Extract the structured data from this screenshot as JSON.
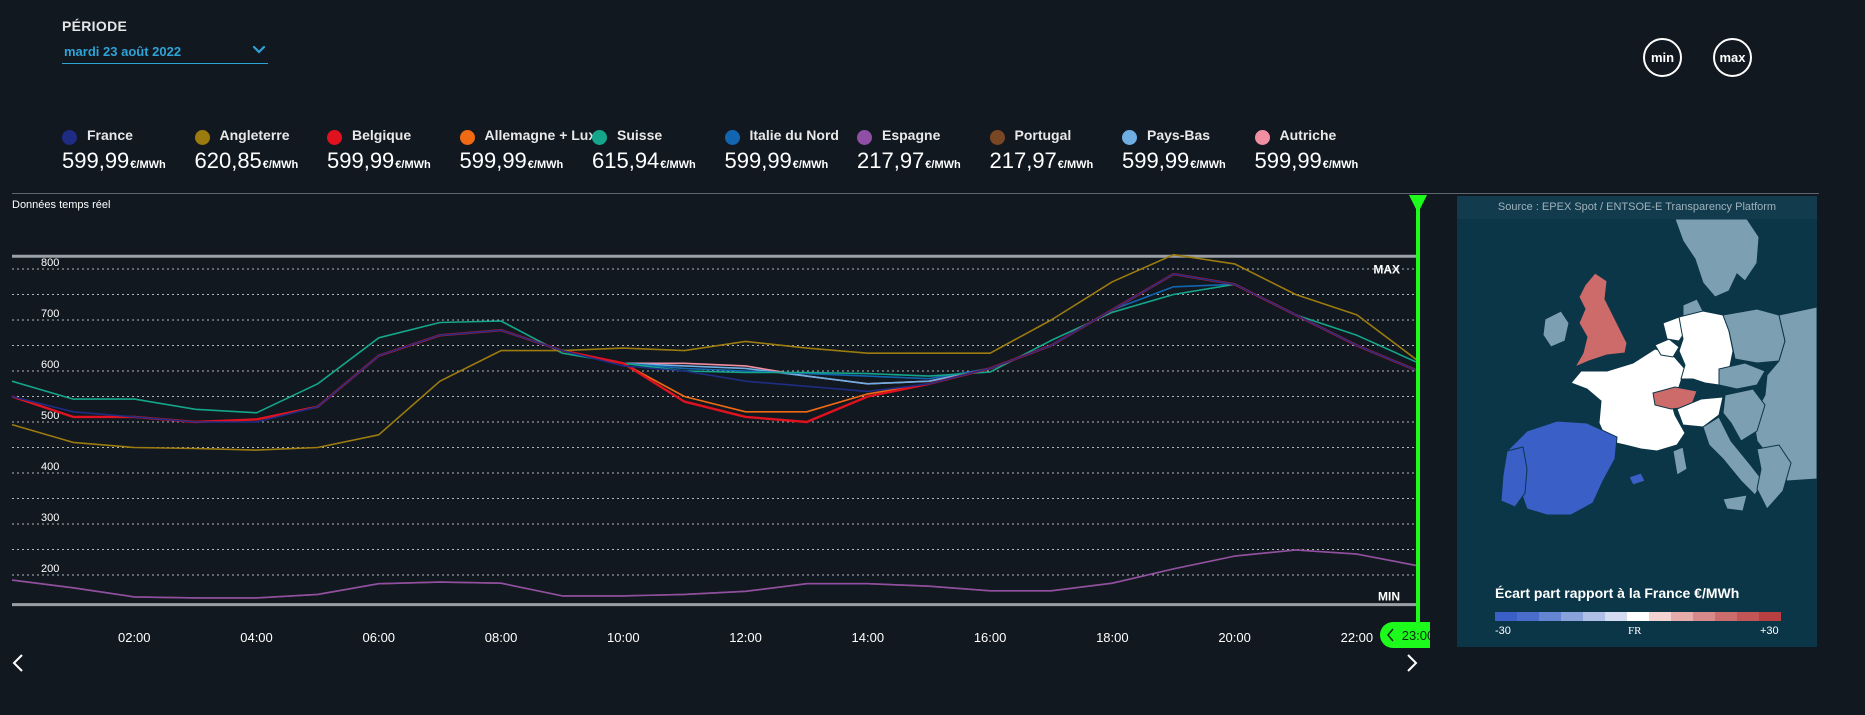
{
  "period": {
    "label": "PÉRIODE",
    "date": "mardi 23 août 2022"
  },
  "buttons": {
    "min": "min",
    "max": "max"
  },
  "legend": [
    {
      "name": "France",
      "value": "599,99",
      "unit": "€/MWh",
      "color": "#1f2c84"
    },
    {
      "name": "Angleterre",
      "value": "620,85",
      "unit": "€/MWh",
      "color": "#9c7b0e"
    },
    {
      "name": "Belgique",
      "value": "599,99",
      "unit": "€/MWh",
      "color": "#e0121f"
    },
    {
      "name": "Allemagne + Lux",
      "value": "599,99",
      "unit": "€/MWh",
      "color": "#ef6a13"
    },
    {
      "name": "Suisse",
      "value": "615,94",
      "unit": "€/MWh",
      "color": "#14a58a"
    },
    {
      "name": "Italie du Nord",
      "value": "599,99",
      "unit": "€/MWh",
      "color": "#1265b0"
    },
    {
      "name": "Espagne",
      "value": "217,97",
      "unit": "€/MWh",
      "color": "#8e4fa5"
    },
    {
      "name": "Portugal",
      "value": "217,97",
      "unit": "€/MWh",
      "color": "#7a4724"
    },
    {
      "name": "Pays-Bas",
      "value": "599,99",
      "unit": "€/MWh",
      "color": "#6faee3"
    },
    {
      "name": "Autriche",
      "value": "599,99",
      "unit": "€/MWh",
      "color": "#f08fa2"
    }
  ],
  "chart_label": "Données temps réel",
  "chart_data": {
    "type": "line",
    "x": [
      "00:00",
      "01:00",
      "02:00",
      "03:00",
      "04:00",
      "05:00",
      "06:00",
      "07:00",
      "08:00",
      "09:00",
      "10:00",
      "11:00",
      "12:00",
      "13:00",
      "14:00",
      "15:00",
      "16:00",
      "17:00",
      "18:00",
      "19:00",
      "20:00",
      "21:00",
      "22:00",
      "23:00"
    ],
    "x_tick_labels": [
      "02:00",
      "04:00",
      "06:00",
      "08:00",
      "10:00",
      "12:00",
      "14:00",
      "16:00",
      "18:00",
      "20:00",
      "22:00"
    ],
    "y_tick_labels": [
      "200",
      "300",
      "400",
      "500",
      "600",
      "700",
      "800"
    ],
    "ylim": [
      150,
      840
    ],
    "max_line": {
      "label": "MAX",
      "value": 825
    },
    "min_line": {
      "label": "MIN",
      "value": 142
    },
    "cursor": {
      "label": "23:00",
      "color": "#1dfb1d"
    },
    "series": [
      {
        "name": "France",
        "color": "#1f2c84",
        "values": [
          550,
          520,
          510,
          500,
          500,
          530,
          630,
          670,
          680,
          640,
          610,
          600,
          580,
          570,
          560,
          575,
          605,
          650,
          720,
          790,
          770,
          710,
          650,
          600
        ]
      },
      {
        "name": "Angleterre",
        "color": "#9c7b0e",
        "values": [
          495,
          460,
          450,
          448,
          445,
          450,
          475,
          580,
          640,
          640,
          645,
          640,
          658,
          645,
          635,
          635,
          635,
          700,
          775,
          828,
          810,
          750,
          710,
          620
        ]
      },
      {
        "name": "Belgique",
        "color": "#e0121f",
        "values": [
          550,
          510,
          510,
          500,
          505,
          530,
          630,
          670,
          680,
          640,
          615,
          540,
          510,
          500,
          550,
          575,
          605,
          650,
          720,
          790,
          770,
          710,
          650,
          600
        ]
      },
      {
        "name": "Allemagne + Lux",
        "color": "#ef6a13",
        "values": [
          550,
          510,
          510,
          500,
          505,
          530,
          630,
          670,
          680,
          640,
          615,
          550,
          520,
          520,
          555,
          575,
          605,
          650,
          720,
          790,
          770,
          710,
          650,
          600
        ]
      },
      {
        "name": "Suisse",
        "color": "#14a58a",
        "values": [
          580,
          545,
          545,
          525,
          518,
          575,
          665,
          695,
          698,
          635,
          615,
          600,
          597,
          597,
          595,
          590,
          598,
          660,
          715,
          750,
          770,
          710,
          670,
          616
        ]
      },
      {
        "name": "Italie du Nord",
        "color": "#1265b0",
        "values": [
          550,
          510,
          510,
          500,
          505,
          530,
          630,
          670,
          680,
          640,
          615,
          605,
          600,
          595,
          590,
          585,
          605,
          650,
          720,
          765,
          770,
          710,
          650,
          600
        ]
      },
      {
        "name": "Espagne",
        "color": "#8e4fa5",
        "values": [
          190,
          175,
          157,
          155,
          155,
          162,
          183,
          186,
          184,
          159,
          159,
          162,
          168,
          183,
          183,
          178,
          169,
          169,
          184,
          212,
          237,
          249,
          241,
          218
        ]
      },
      {
        "name": "Portugal",
        "color": "#7a4724",
        "values": [
          190,
          175,
          157,
          155,
          155,
          162,
          183,
          186,
          184,
          159,
          159,
          162,
          168,
          183,
          183,
          178,
          169,
          169,
          184,
          212,
          237,
          249,
          241,
          218
        ]
      },
      {
        "name": "Pays-Bas",
        "color": "#6faee3",
        "values": [
          550,
          510,
          510,
          500,
          505,
          530,
          630,
          670,
          680,
          640,
          615,
          610,
          605,
          590,
          575,
          580,
          605,
          650,
          720,
          790,
          770,
          710,
          650,
          600
        ]
      },
      {
        "name": "Autriche",
        "color": "#f08fa2",
        "values": [
          550,
          510,
          510,
          500,
          505,
          530,
          630,
          670,
          680,
          640,
          615,
          615,
          610,
          590,
          575,
          580,
          605,
          650,
          720,
          790,
          770,
          710,
          650,
          600
        ]
      }
    ]
  },
  "map": {
    "source": "Source : EPEX Spot / ENTSOE-E Transparency Platform",
    "title": "Écart part rapport à la France €/MWh",
    "scale_min": "-30",
    "scale_mid": "FR",
    "scale_max": "+30",
    "scale_colors": [
      "#3a5fc6",
      "#4a6ccb",
      "#6585d2",
      "#8aa2dc",
      "#afc0e6",
      "#d3dcf0",
      "#ffffff",
      "#f3d2d2",
      "#e6acac",
      "#d88a8a",
      "#cc6d6d",
      "#c25555",
      "#b84040"
    ],
    "colors": {
      "sea": "#0b3648",
      "france": "#ffffff",
      "higher": "#cd6a6a",
      "lower": "#3a5fc6",
      "other": "#7d9fb2"
    }
  }
}
